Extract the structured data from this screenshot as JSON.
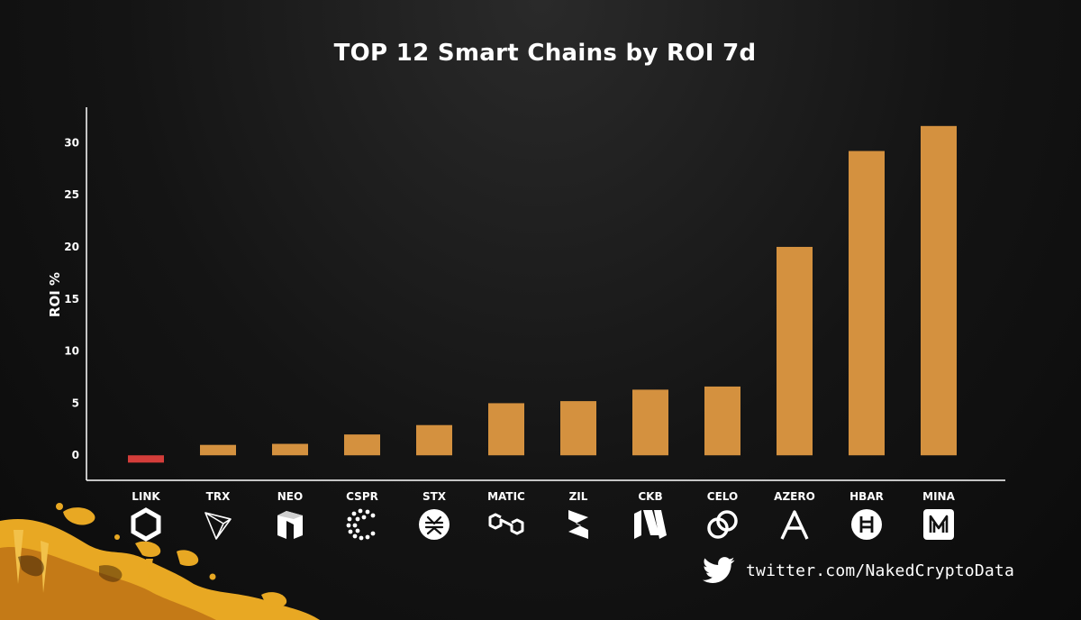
{
  "chart_data": {
    "type": "bar",
    "title": "TOP 12 Smart Chains by ROI 7d",
    "xlabel": "",
    "ylabel": "ROI %",
    "categories": [
      "LINK",
      "TRX",
      "NEO",
      "CSPR",
      "STX",
      "MATIC",
      "ZIL",
      "CKB",
      "CELO",
      "AZERO",
      "HBAR",
      "MINA"
    ],
    "values": [
      -0.7,
      1.0,
      1.1,
      2.0,
      2.9,
      5.0,
      5.2,
      6.3,
      6.6,
      20.0,
      29.2,
      31.6
    ],
    "yticks": [
      0,
      5,
      10,
      15,
      20,
      25,
      30
    ],
    "ylim": [
      -2.4,
      33.4
    ],
    "colors": {
      "positive": "#d4913f",
      "negative": "#d43d3a"
    },
    "icons": [
      "chainlink-icon",
      "tron-icon",
      "neo-icon",
      "casper-icon",
      "stacks-icon",
      "polygon-icon",
      "zilliqa-icon",
      "nervos-icon",
      "celo-icon",
      "aleph-zero-icon",
      "hedera-icon",
      "mina-icon"
    ],
    "grid": false,
    "legend": "none"
  },
  "footer": {
    "twitter_icon": "twitter-bird-icon",
    "twitter_handle": "twitter.com/NakedCryptoData"
  }
}
